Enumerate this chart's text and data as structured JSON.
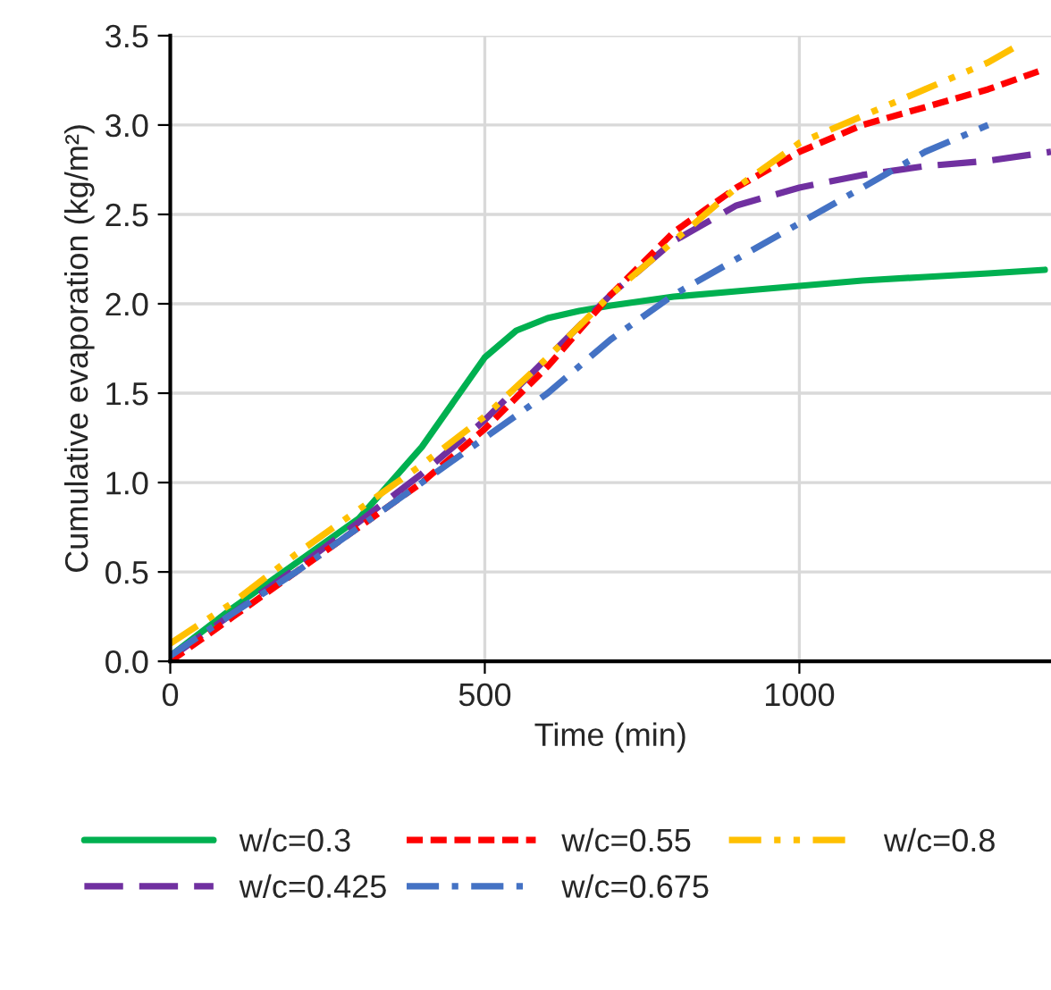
{
  "chart_data": {
    "type": "line",
    "xlabel": "Time (min)",
    "ylabel": "Cumulative evaporation (kg/m²)",
    "xlim": [
      0,
      1400
    ],
    "xticks": [
      0,
      500,
      1000
    ],
    "ylim": [
      0,
      3.5
    ],
    "yticks": [
      {
        "value": 0,
        "label": "0.0"
      },
      {
        "value": 0.5,
        "label": "0.5"
      },
      {
        "value": 1,
        "label": "1.0"
      },
      {
        "value": 1.5,
        "label": "1.5"
      },
      {
        "value": 2,
        "label": "2.0"
      },
      {
        "value": 2.5,
        "label": "2.5"
      },
      {
        "value": 3,
        "label": "3.0"
      },
      {
        "value": 3.5,
        "label": "3.5"
      }
    ],
    "grid": true,
    "legend": "bottom",
    "marker": "none",
    "series": [
      {
        "name": "w/c=0.3",
        "color": "#00b050",
        "line_style": "solid",
        "x": [
          0,
          100,
          200,
          300,
          400,
          450,
          500,
          550,
          600,
          650,
          700,
          800,
          900,
          1000,
          1100,
          1200,
          1300,
          1390
        ],
        "values": [
          0.03,
          0.3,
          0.55,
          0.8,
          1.2,
          1.45,
          1.7,
          1.85,
          1.92,
          1.96,
          1.99,
          2.04,
          2.07,
          2.1,
          2.13,
          2.15,
          2.17,
          2.19
        ]
      },
      {
        "name": "w/c=0.425",
        "color": "#7030a0",
        "line_style": "dashed",
        "x": [
          0,
          100,
          200,
          300,
          400,
          500,
          600,
          700,
          800,
          900,
          1000,
          1100,
          1200,
          1300,
          1400
        ],
        "values": [
          0.02,
          0.27,
          0.52,
          0.78,
          1.05,
          1.35,
          1.7,
          2.05,
          2.35,
          2.55,
          2.65,
          2.72,
          2.77,
          2.8,
          2.85
        ]
      },
      {
        "name": "w/c=0.55",
        "color": "#ff0000",
        "line_style": "dotted",
        "x": [
          0,
          100,
          200,
          300,
          400,
          500,
          600,
          700,
          800,
          900,
          1000,
          1100,
          1200,
          1300,
          1380
        ],
        "values": [
          0,
          0.25,
          0.5,
          0.75,
          1.0,
          1.3,
          1.65,
          2.05,
          2.4,
          2.65,
          2.85,
          3.0,
          3.1,
          3.2,
          3.3
        ]
      },
      {
        "name": "w/c=0.675",
        "color": "#4472c4",
        "line_style": "dashdot",
        "x": [
          0,
          100,
          200,
          300,
          400,
          500,
          600,
          700,
          800,
          900,
          1000,
          1100,
          1200,
          1300
        ],
        "values": [
          0.03,
          0.27,
          0.5,
          0.75,
          1.0,
          1.25,
          1.5,
          1.8,
          2.05,
          2.25,
          2.45,
          2.65,
          2.85,
          3.0
        ]
      },
      {
        "name": "w/c=0.8",
        "color": "#ffc000",
        "line_style": "dashdotdot",
        "x": [
          0,
          100,
          200,
          300,
          400,
          500,
          600,
          700,
          800,
          900,
          1000,
          1100,
          1200,
          1300,
          1350
        ],
        "values": [
          0.1,
          0.33,
          0.6,
          0.85,
          1.1,
          1.37,
          1.7,
          2.05,
          2.35,
          2.65,
          2.9,
          3.05,
          3.2,
          3.35,
          3.45
        ]
      }
    ]
  }
}
